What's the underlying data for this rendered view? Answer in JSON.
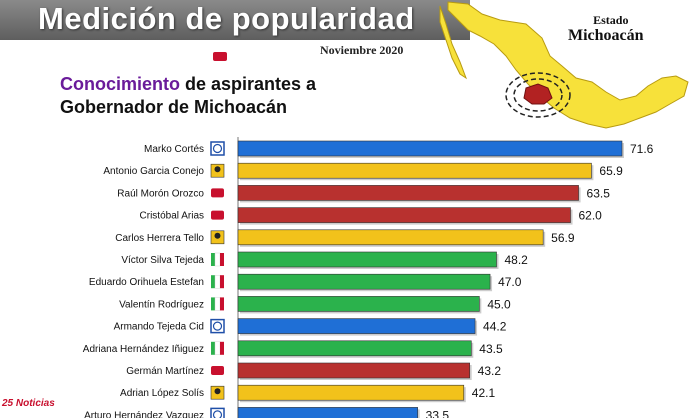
{
  "header": {
    "title": "Medición de popularidad",
    "date": "Noviembre 2020"
  },
  "subtitle": {
    "highlight": "Conocimiento",
    "rest_line1": " de aspirantes a",
    "line2": "Gobernador de Michoacán"
  },
  "state": {
    "small": "Estado",
    "big": "Michoacán"
  },
  "colors": {
    "PAN": "#1f6fd6",
    "PRD": "#f2c21b",
    "MORENA": "#b8312f",
    "PRI": "#2bb24c",
    "header": "#6e6e6e",
    "highlight": "#6a1b9a",
    "map_fill": "#f7e13a",
    "state_fill": "#b22222"
  },
  "chart_data": {
    "type": "bar",
    "orientation": "horizontal",
    "title": "Conocimiento de aspirantes a Gobernador de Michoacán",
    "categories": [
      "Marko Cortés",
      "Antonio Garcia Conejo",
      "Raúl Morón Orozco",
      "Cristóbal Arias",
      "Carlos Herrera Tello",
      "Víctor Silva Tejeda",
      "Eduardo Orihuela Estefan",
      "Valentín Rodríguez",
      "Armando Tejeda Cid",
      "Adriana Hernández Iñiguez",
      "Germán Martínez",
      "Adrian López Solís",
      "Arturo Hernández Vazquez"
    ],
    "values": [
      71.6,
      65.9,
      63.5,
      62.0,
      56.9,
      48.2,
      47.0,
      45.0,
      44.2,
      43.5,
      43.2,
      42.1,
      33.5
    ],
    "labels": [
      "71.6",
      "65.9",
      "63.5",
      "62.0",
      "56.9",
      "48.2",
      "47.0",
      "45.0",
      "44.2",
      "43.5",
      "43.2",
      "42.1",
      "33.5"
    ],
    "parties": [
      "PAN",
      "PRD",
      "MORENA",
      "MORENA",
      "PRD",
      "PRI",
      "PRI",
      "PRI",
      "PAN",
      "PRI",
      "MORENA",
      "PRD",
      "PAN"
    ],
    "xlim": [
      0,
      75
    ]
  }
}
